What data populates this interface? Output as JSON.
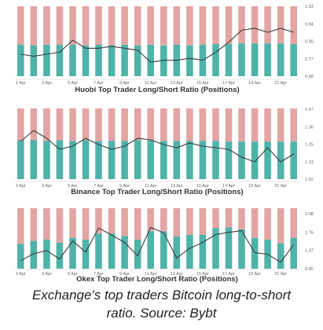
{
  "chart_data": [
    {
      "type": "bar",
      "title": "Huobi Top Trader Long/Short Ratio (Positions)",
      "x": [
        "1 Apr",
        "",
        "3 Apr",
        "",
        "5 Apr",
        "",
        "7 Apr",
        "",
        "9 Apr",
        "",
        "11 Apr",
        "",
        "13 Apr",
        "",
        "15 Apr",
        "",
        "17 Apr",
        "",
        "19 Apr",
        "",
        "21 Apr",
        ""
      ],
      "x_tick_labels": [
        "1 Apr",
        "3 Apr",
        "5 Apr",
        "7 Apr",
        "9 Apr",
        "11 Apr",
        "13 Apr",
        "15 Apr",
        "17 Apr",
        "19 Apr",
        "21 Apr"
      ],
      "y_tick_labels": [
        "1.03",
        "0.94",
        "0.85",
        "0.77",
        "0.68"
      ],
      "ylim": [
        0.68,
        1.03
      ],
      "series": [
        {
          "type": "stacked-bar-long",
          "values": [
            0.45,
            0.44,
            0.45,
            0.45,
            0.45,
            0.44,
            0.45,
            0.44,
            0.45,
            0.44,
            0.45,
            0.44,
            0.45,
            0.44,
            0.45,
            0.46,
            0.46,
            0.47,
            0.47,
            0.47,
            0.47,
            0.46
          ]
        },
        {
          "type": "ratio-line",
          "values": [
            0.79,
            0.78,
            0.79,
            0.8,
            0.86,
            0.82,
            0.82,
            0.83,
            0.82,
            0.81,
            0.75,
            0.76,
            0.76,
            0.77,
            0.76,
            0.8,
            0.85,
            0.91,
            0.92,
            0.9,
            0.92,
            0.9
          ]
        }
      ]
    },
    {
      "type": "bar",
      "title": "Binance Top Trader Long/Short Ratio (Positions)",
      "x": [
        "1 Apr",
        "",
        "3 Apr",
        "",
        "5 Apr",
        "",
        "7 Apr",
        "",
        "9 Apr",
        "",
        "11 Apr",
        "",
        "13 Apr",
        "",
        "15 Apr",
        "",
        "17 Apr",
        "",
        "19 Apr",
        "",
        "21 Apr",
        ""
      ],
      "x_tick_labels": [
        "1 Apr",
        "3 Apr",
        "5 Apr",
        "7 Apr",
        "9 Apr",
        "11 Apr",
        "13 Apr",
        "15 Apr",
        "17 Apr",
        "19 Apr",
        "21 Apr"
      ],
      "y_tick_labels": [
        "1.47",
        "1.36",
        "1.25",
        "1.13",
        "1.02"
      ],
      "ylim": [
        1.02,
        1.47
      ],
      "series": [
        {
          "type": "stacked-bar-long",
          "values": [
            0.55,
            0.55,
            0.54,
            0.55,
            0.54,
            0.55,
            0.54,
            0.54,
            0.54,
            0.55,
            0.55,
            0.54,
            0.54,
            0.54,
            0.54,
            0.54,
            0.53,
            0.53,
            0.53,
            0.53,
            0.53,
            0.53
          ]
        },
        {
          "type": "ratio-line",
          "values": [
            1.26,
            1.33,
            1.28,
            1.21,
            1.23,
            1.28,
            1.24,
            1.21,
            1.23,
            1.28,
            1.27,
            1.24,
            1.22,
            1.25,
            1.23,
            1.22,
            1.21,
            1.16,
            1.13,
            1.22,
            1.13,
            1.18
          ]
        }
      ]
    },
    {
      "type": "bar",
      "title": "Okex Top Trader Long/Short Ratio (Positions)",
      "x": [
        "1 Apr",
        "",
        "3 Apr",
        "",
        "5 Apr",
        "",
        "7 Apr",
        "",
        "9 Apr",
        "",
        "11 Apr",
        "",
        "13 Apr",
        "",
        "15 Apr",
        "",
        "17 Apr",
        "",
        "19 Apr",
        "",
        "21 Apr",
        ""
      ],
      "x_tick_labels": [
        "1 Apr",
        "3 Apr",
        "5 Apr",
        "7 Apr",
        "9 Apr",
        "11 Apr",
        "13 Apr",
        "15 Apr",
        "17 Apr",
        "19 Apr",
        "21 Apr"
      ],
      "y_tick_labels": [
        "2.08",
        "1.76",
        "1.37",
        "0.95"
      ],
      "ylim": [
        0.95,
        2.08
      ],
      "series": [
        {
          "type": "stacked-bar-long",
          "values": [
            0.41,
            0.46,
            0.48,
            0.43,
            0.51,
            0.48,
            0.58,
            0.58,
            0.54,
            0.48,
            0.62,
            0.62,
            0.53,
            0.56,
            0.56,
            0.67,
            0.68,
            0.65,
            0.51,
            0.48,
            0.42,
            0.51
          ]
        },
        {
          "type": "ratio-line",
          "values": [
            1.1,
            1.23,
            1.29,
            1.13,
            1.47,
            1.26,
            1.71,
            1.58,
            1.44,
            1.19,
            1.72,
            1.62,
            1.15,
            1.33,
            1.44,
            1.59,
            1.63,
            1.66,
            1.25,
            1.22,
            1.07,
            1.4
          ]
        }
      ]
    }
  ],
  "caption": {
    "line1": "Exchange's top traders Bitcoin long-to-short",
    "line2": "ratio. Source: Bybt"
  },
  "colors": {
    "long": "#4fb3a9",
    "short": "#e3a5a4",
    "line": "#3c3c3c"
  }
}
